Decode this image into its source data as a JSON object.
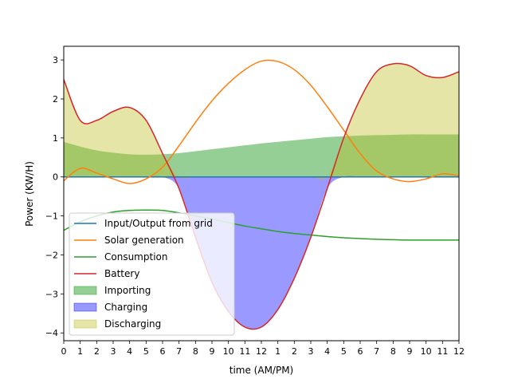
{
  "chart_data": {
    "type": "line",
    "title": "",
    "xlabel": "time (AM/PM)",
    "ylabel": "Power (KW/H)",
    "xlim": [
      0,
      24
    ],
    "ylim": [
      -4.2,
      3.35
    ],
    "x_ticks": [
      0,
      1,
      2,
      3,
      4,
      5,
      6,
      7,
      8,
      9,
      10,
      11,
      12,
      13,
      14,
      15,
      16,
      17,
      18,
      19,
      20,
      21,
      22,
      23,
      24
    ],
    "x_tick_labels": [
      "0",
      "1",
      "2",
      "3",
      "4",
      "5",
      "6",
      "7",
      "8",
      "9",
      "10",
      "11",
      "12",
      "1",
      "2",
      "3",
      "4",
      "5",
      "6",
      "7",
      "8",
      "9",
      "10",
      "11",
      "12"
    ],
    "y_ticks": [
      -4,
      -3,
      -2,
      -1,
      0,
      1,
      2,
      3
    ],
    "y_tick_labels": [
      "−4",
      "−3",
      "−2",
      "−1",
      "0",
      "1",
      "2",
      "3"
    ],
    "grid": false,
    "legend_position": "lower-left",
    "x": [
      0,
      1,
      2,
      3,
      4,
      5,
      6,
      7,
      8,
      9,
      10,
      11,
      12,
      13,
      14,
      15,
      16,
      17,
      18,
      19,
      20,
      21,
      22,
      23,
      24
    ],
    "series": [
      {
        "name": "Input/Output from grid",
        "color": "#1f77b4",
        "values": [
          0,
          0,
          0,
          0,
          0,
          0,
          0,
          0,
          0,
          0,
          0,
          0,
          0,
          0,
          0,
          0,
          0,
          0,
          0,
          0,
          0,
          0,
          0,
          0,
          0
        ]
      },
      {
        "name": "Solar generation",
        "color": "#ff7f0e",
        "values": [
          -0.1,
          0.22,
          0.1,
          -0.05,
          -0.17,
          -0.05,
          0.25,
          0.8,
          1.4,
          1.95,
          2.4,
          2.75,
          2.97,
          2.96,
          2.75,
          2.35,
          1.8,
          1.2,
          0.6,
          0.15,
          -0.05,
          -0.12,
          -0.05,
          0.08,
          0.03
        ]
      },
      {
        "name": "Consumption",
        "color": "#2ca02c",
        "values": [
          -1.37,
          -1.15,
          -1.0,
          -0.9,
          -0.86,
          -0.85,
          -0.86,
          -0.92,
          -1.0,
          -1.08,
          -1.17,
          -1.26,
          -1.33,
          -1.4,
          -1.45,
          -1.49,
          -1.53,
          -1.56,
          -1.58,
          -1.6,
          -1.61,
          -1.62,
          -1.62,
          -1.62,
          -1.62
        ]
      },
      {
        "name": "Battery",
        "color": "#d62728",
        "values": [
          2.5,
          1.45,
          1.45,
          1.68,
          1.78,
          1.45,
          0.6,
          -0.3,
          -1.55,
          -2.7,
          -3.45,
          -3.85,
          -3.85,
          -3.4,
          -2.6,
          -1.55,
          -0.3,
          1.0,
          2.0,
          2.7,
          2.9,
          2.85,
          2.6,
          2.55,
          2.7
        ]
      }
    ],
    "fills": [
      {
        "name": "Importing",
        "color": "#2ca02c",
        "alpha": 0.5,
        "values": [
          0.9,
          0.78,
          0.68,
          0.62,
          0.58,
          0.57,
          0.58,
          0.61,
          0.66,
          0.71,
          0.76,
          0.81,
          0.86,
          0.9,
          0.94,
          0.98,
          1.02,
          1.04,
          1.06,
          1.07,
          1.08,
          1.09,
          1.09,
          1.09,
          1.09
        ]
      },
      {
        "name": "Charging",
        "color": "#0000ff",
        "alpha": 0.4,
        "values": [
          0,
          0,
          0,
          0,
          0,
          0,
          0,
          -0.3,
          -1.55,
          -2.7,
          -3.45,
          -3.85,
          -3.85,
          -3.4,
          -2.6,
          -1.55,
          -0.3,
          0,
          0,
          0,
          0,
          0,
          0,
          0,
          0
        ]
      },
      {
        "name": "Discharging",
        "color": "#bcbd22",
        "alpha": 0.4,
        "values": [
          2.5,
          1.45,
          1.45,
          1.68,
          1.78,
          1.45,
          0.6,
          0,
          0,
          0,
          0,
          0,
          0,
          0,
          0,
          0,
          0,
          1.0,
          2.0,
          2.7,
          2.9,
          2.85,
          2.6,
          2.55,
          2.7
        ]
      }
    ]
  }
}
